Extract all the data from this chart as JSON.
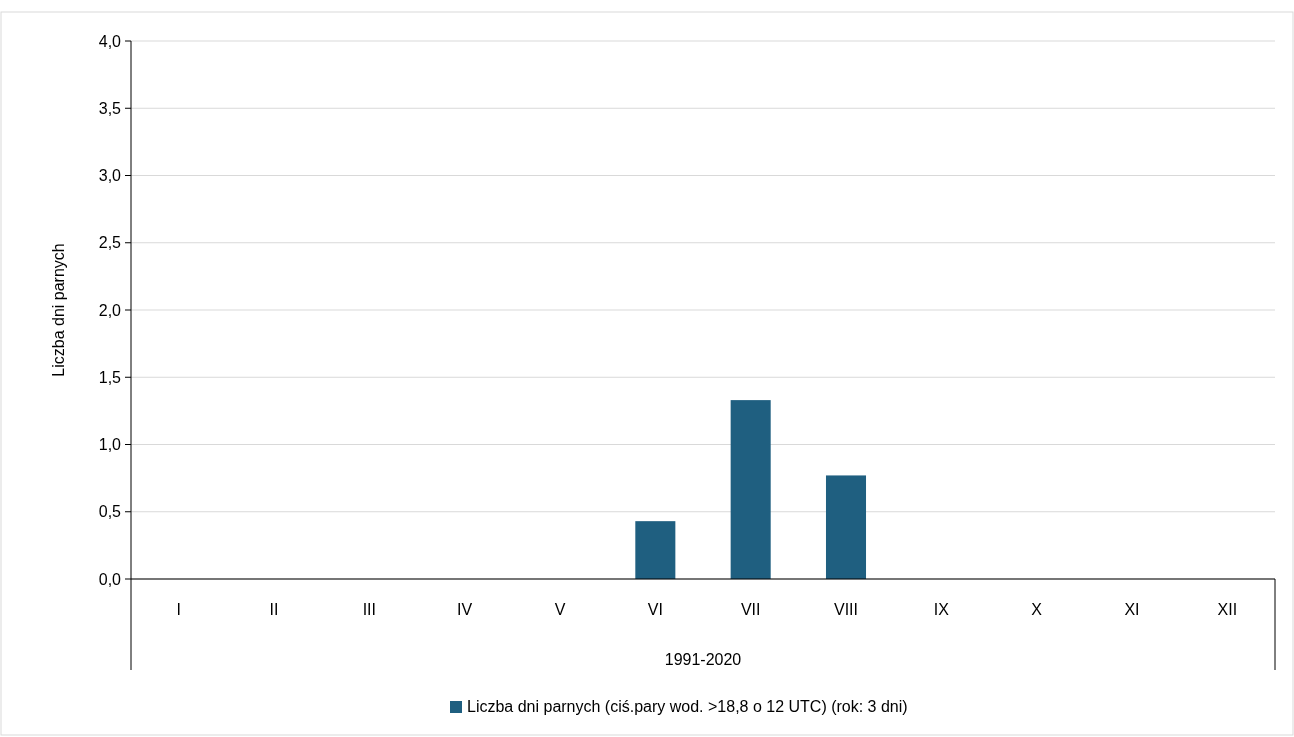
{
  "chart_data": {
    "type": "bar",
    "ylabel": "Liczba dni parnych",
    "xlabel": "1991-2020",
    "categories": [
      "I",
      "II",
      "III",
      "IV",
      "V",
      "VI",
      "VII",
      "VIII",
      "IX",
      "X",
      "XI",
      "XII"
    ],
    "series": [
      {
        "name": "Liczba dni parnych (ciś.pary wod. >18,8 o 12 UTC) (rok: 3 dni)",
        "color": "#1f5f80",
        "values": [
          0,
          0,
          0,
          0,
          0,
          0.43,
          1.33,
          0.77,
          0,
          0,
          0,
          0
        ]
      }
    ],
    "ylim": [
      0,
      4
    ],
    "yticks": [
      {
        "value": 0,
        "label": "0,0"
      },
      {
        "value": 0.5,
        "label": "0,5"
      },
      {
        "value": 1,
        "label": "1,0"
      },
      {
        "value": 1.5,
        "label": "1,5"
      },
      {
        "value": 2,
        "label": "2,0"
      },
      {
        "value": 2.5,
        "label": "2,5"
      },
      {
        "value": 3,
        "label": "3,0"
      },
      {
        "value": 3.5,
        "label": "3,5"
      },
      {
        "value": 4,
        "label": "4,0"
      }
    ],
    "grid": "y",
    "legend": "bottom"
  }
}
